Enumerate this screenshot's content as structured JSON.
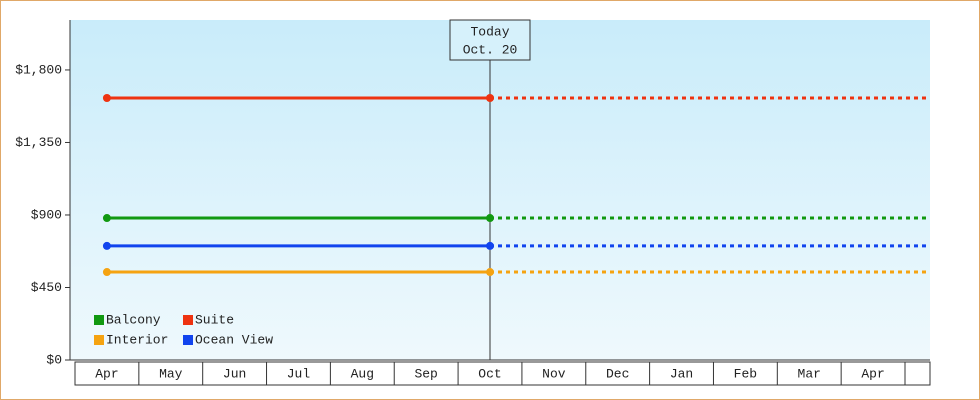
{
  "chart_data": {
    "type": "line",
    "categories": [
      "Apr",
      "May",
      "Jun",
      "Jul",
      "Aug",
      "Sep",
      "Oct",
      "Nov",
      "Dec",
      "Jan",
      "Feb",
      "Mar",
      "Apr"
    ],
    "series": [
      {
        "name": "Balcony",
        "color": "#119911",
        "values": [
          881,
          881,
          881,
          881,
          881,
          881,
          881,
          null,
          null,
          null,
          null,
          null,
          null
        ]
      },
      {
        "name": "Suite",
        "color": "#ee3311",
        "values": [
          1626,
          1626,
          1626,
          1626,
          1626,
          1626,
          1626,
          null,
          null,
          null,
          null,
          null,
          null
        ]
      },
      {
        "name": "Interior",
        "color": "#f5a311",
        "values": [
          546,
          546,
          546,
          546,
          546,
          546,
          546,
          null,
          null,
          null,
          null,
          null,
          null
        ]
      },
      {
        "name": "Ocean View",
        "color": "#1144ee",
        "values": [
          708,
          708,
          708,
          708,
          708,
          708,
          708,
          null,
          null,
          null,
          null,
          null,
          null
        ]
      }
    ],
    "annotation": {
      "title": "Today",
      "date": "Oct. 20"
    },
    "ylim": [
      0,
      2110
    ],
    "yticks": [
      {
        "value": 0,
        "label": "$0"
      },
      {
        "value": 450,
        "label": "$450"
      },
      {
        "value": 900,
        "label": "$900"
      },
      {
        "value": 1350,
        "label": "$1,350"
      },
      {
        "value": 1800,
        "label": "$1,800"
      }
    ],
    "legend": "lower left"
  }
}
